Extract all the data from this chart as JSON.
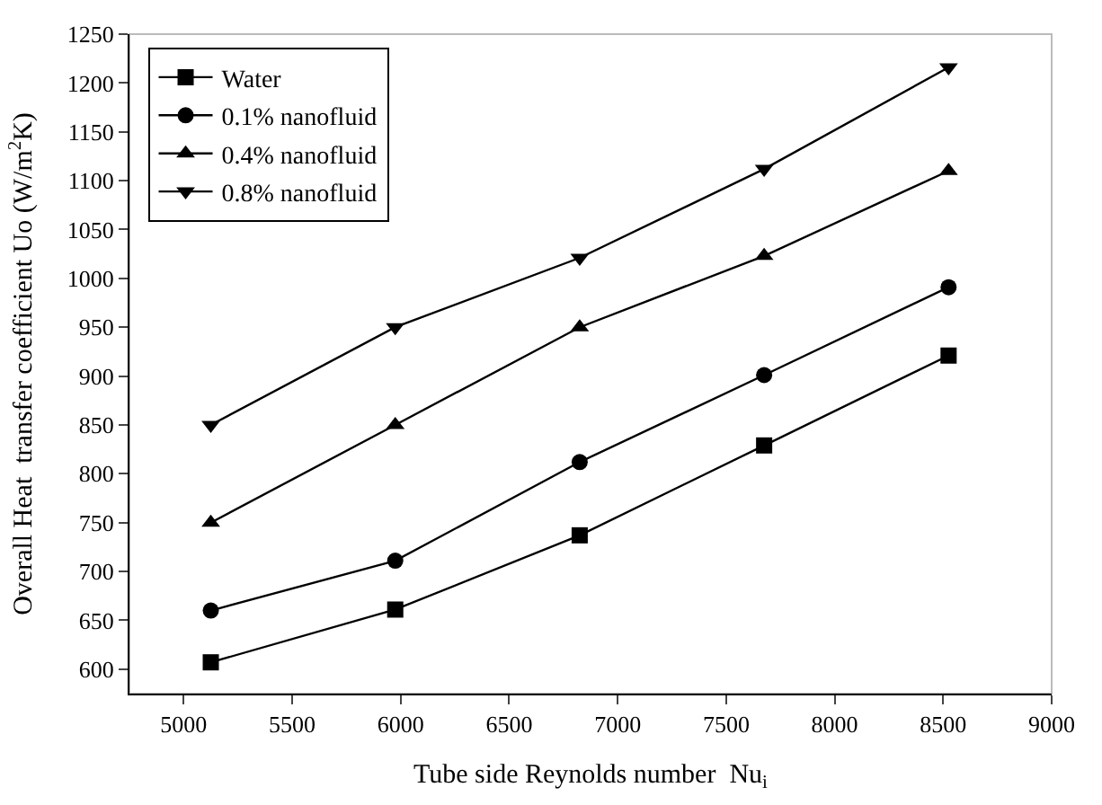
{
  "chart_data": {
    "type": "line",
    "xlabel": "Tube side Reynolds number  Nu$_{i}$",
    "ylabel": "Overall Heat  transfer coefficient Uo (W/m$^{2}$K)",
    "x": [
      5125,
      5975,
      6825,
      7675,
      8525
    ],
    "series": [
      {
        "name": "Water",
        "color": "#000000",
        "marker": "square",
        "values": [
          607,
          661,
          737,
          829,
          921
        ]
      },
      {
        "name": "0.1% nanofluid",
        "color": "#000000",
        "marker": "circle",
        "values": [
          660,
          711,
          812,
          901,
          991
        ]
      },
      {
        "name": "0.4% nanofluid",
        "color": "#000000",
        "marker": "triangle",
        "values": [
          750,
          850,
          950,
          1023,
          1110
        ]
      },
      {
        "name": "0.8% nanofluid",
        "color": "#000000",
        "marker": "triangle-down",
        "values": [
          850,
          950,
          1021,
          1112,
          1216
        ]
      }
    ],
    "xlim": [
      4750,
      9000
    ],
    "xticks": [
      5000,
      5500,
      6000,
      6500,
      7000,
      7500,
      8000,
      8500,
      9000
    ],
    "ylim": [
      575,
      1250
    ],
    "yticks": [
      600,
      650,
      700,
      750,
      800,
      850,
      900,
      950,
      1000,
      1050,
      1100,
      1150,
      1200,
      1250
    ],
    "grid": false,
    "legend": "top left",
    "line_style": "solid"
  }
}
